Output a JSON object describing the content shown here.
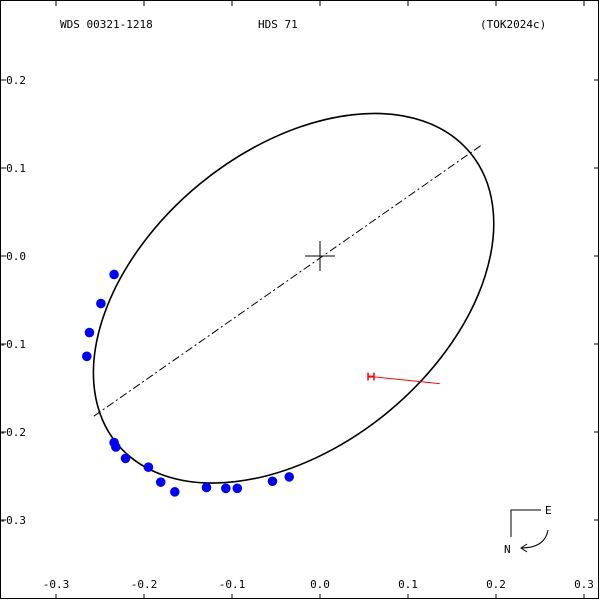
{
  "header": {
    "wds": "WDS 00321-1218",
    "name": "HDS  71",
    "ref": "(TOK2024c)"
  },
  "compass": {
    "east": "E",
    "north": "N"
  },
  "chart_data": {
    "type": "scatter",
    "title": "",
    "xlabel": "",
    "ylabel": "",
    "xlim": [
      -0.3,
      0.3
    ],
    "ylim": [
      -0.35,
      0.2
    ],
    "grid": false,
    "x_ticks": [
      {
        "value": -0.3,
        "label": "-0.3"
      },
      {
        "value": -0.2,
        "label": "-0.2"
      },
      {
        "value": -0.1,
        "label": "-0.1"
      },
      {
        "value": 0.0,
        "label": "0.0"
      },
      {
        "value": 0.1,
        "label": "0.1"
      },
      {
        "value": 0.2,
        "label": "0.2"
      },
      {
        "value": 0.3,
        "label": "0.3"
      }
    ],
    "y_ticks": [
      {
        "value": 0.2,
        "label": "0.2"
      },
      {
        "value": 0.1,
        "label": "0.1"
      },
      {
        "value": 0.0,
        "label": "0.0"
      },
      {
        "value": -0.1,
        "label": "-0.1"
      },
      {
        "value": -0.2,
        "label": "-0.2"
      },
      {
        "value": -0.3,
        "label": "-0.3"
      }
    ],
    "primary": {
      "x": 0.0,
      "y": 0.0
    },
    "orbit": {
      "center": {
        "x": -0.03,
        "y": -0.048
      },
      "semi_axis_a": 0.26,
      "semi_axis_b": 0.168,
      "angle_deg": 39.4,
      "color": "#000000"
    },
    "line_of_apsides": {
      "from": {
        "x": -0.257,
        "y": -0.182
      },
      "to": {
        "x": 0.185,
        "y": 0.127
      }
    },
    "observations": {
      "color": "#0000ff",
      "points": [
        {
          "x": -0.234,
          "y": -0.021
        },
        {
          "x": -0.249,
          "y": -0.054
        },
        {
          "x": -0.262,
          "y": -0.087
        },
        {
          "x": -0.265,
          "y": -0.114
        },
        {
          "x": -0.234,
          "y": -0.212
        },
        {
          "x": -0.232,
          "y": -0.217
        },
        {
          "x": -0.221,
          "y": -0.23
        },
        {
          "x": -0.195,
          "y": -0.24
        },
        {
          "x": -0.181,
          "y": -0.257
        },
        {
          "x": -0.165,
          "y": -0.268
        },
        {
          "x": -0.129,
          "y": -0.263
        },
        {
          "x": -0.107,
          "y": -0.264
        },
        {
          "x": -0.094,
          "y": -0.264
        },
        {
          "x": -0.054,
          "y": -0.256
        },
        {
          "x": -0.035,
          "y": -0.251
        }
      ]
    },
    "residual": {
      "color": "#ff0000",
      "from": {
        "x": 0.058,
        "y": -0.137
      },
      "to": {
        "x": 0.136,
        "y": -0.145
      }
    }
  }
}
